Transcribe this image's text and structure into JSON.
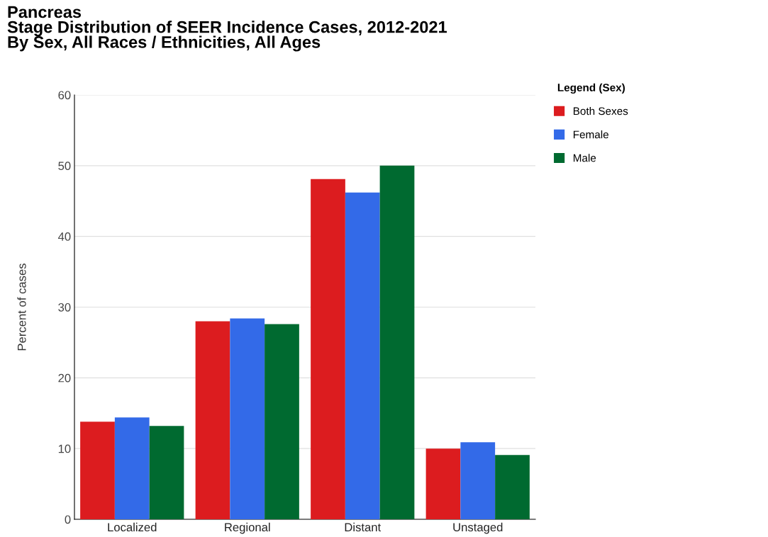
{
  "chart_data": {
    "type": "bar",
    "title": "Pancreas\nStage Distribution of SEER Incidence Cases, 2012-2021\nBy Sex, All Races / Ethnicities, All Ages",
    "ylabel": "Percent of cases",
    "legend_title": "Legend (Sex)",
    "categories": [
      "Localized",
      "Regional",
      "Distant",
      "Unstaged"
    ],
    "series": [
      {
        "name": "Both Sexes",
        "color": "#dc1c1f",
        "values": [
          13.8,
          28.0,
          48.1,
          10.0
        ]
      },
      {
        "name": "Female",
        "color": "#336ae8",
        "values": [
          14.4,
          28.4,
          46.2,
          10.9
        ]
      },
      {
        "name": "Male",
        "color": "#006a30",
        "values": [
          13.2,
          27.6,
          50.0,
          9.1
        ]
      }
    ],
    "ylim": [
      0,
      60
    ],
    "yticks": [
      0,
      10,
      20,
      30,
      40,
      50,
      60
    ],
    "grid": "y",
    "legend": "right"
  }
}
